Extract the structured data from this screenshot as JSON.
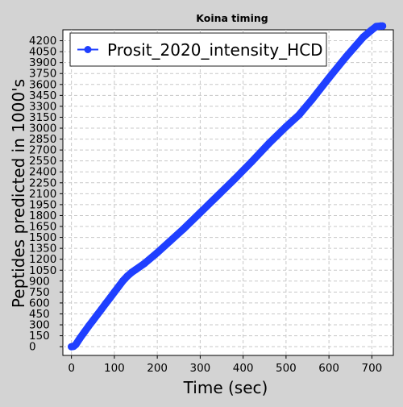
{
  "chart_data": {
    "type": "line",
    "title": "Koina timing",
    "xlabel": "Time (sec)",
    "ylabel": "Peptides predicted in 1000's",
    "xlim": [
      -20,
      750
    ],
    "ylim": [
      -120,
      4350
    ],
    "x_ticks": [
      0,
      100,
      200,
      300,
      400,
      500,
      600,
      700
    ],
    "y_ticks": [
      0,
      150,
      300,
      450,
      600,
      750,
      900,
      1050,
      1200,
      1350,
      1500,
      1650,
      1800,
      1950,
      2100,
      2250,
      2400,
      2550,
      2700,
      2850,
      3000,
      3150,
      3300,
      3450,
      3600,
      3750,
      3900,
      4050,
      4200
    ],
    "grid": true,
    "legend_position": "top-left",
    "series": [
      {
        "name": "Prosit_2020_intensity_HCD",
        "color": "#1f3fff",
        "x": [
          0,
          5,
          10,
          20,
          30,
          40,
          50,
          60,
          70,
          80,
          90,
          100,
          110,
          120,
          130,
          140,
          150,
          170,
          200,
          230,
          260,
          300,
          340,
          380,
          420,
          460,
          500,
          530,
          560,
          600,
          640,
          680,
          700,
          710,
          720,
          725
        ],
        "y": [
          0,
          4,
          28,
          118,
          200,
          280,
          358,
          436,
          514,
          592,
          670,
          748,
          826,
          904,
          968,
          1018,
          1060,
          1142,
          1290,
          1450,
          1610,
          1840,
          2070,
          2300,
          2540,
          2790,
          3020,
          3180,
          3390,
          3690,
          3980,
          4250,
          4350,
          4395,
          4402,
          4402
        ]
      }
    ]
  }
}
